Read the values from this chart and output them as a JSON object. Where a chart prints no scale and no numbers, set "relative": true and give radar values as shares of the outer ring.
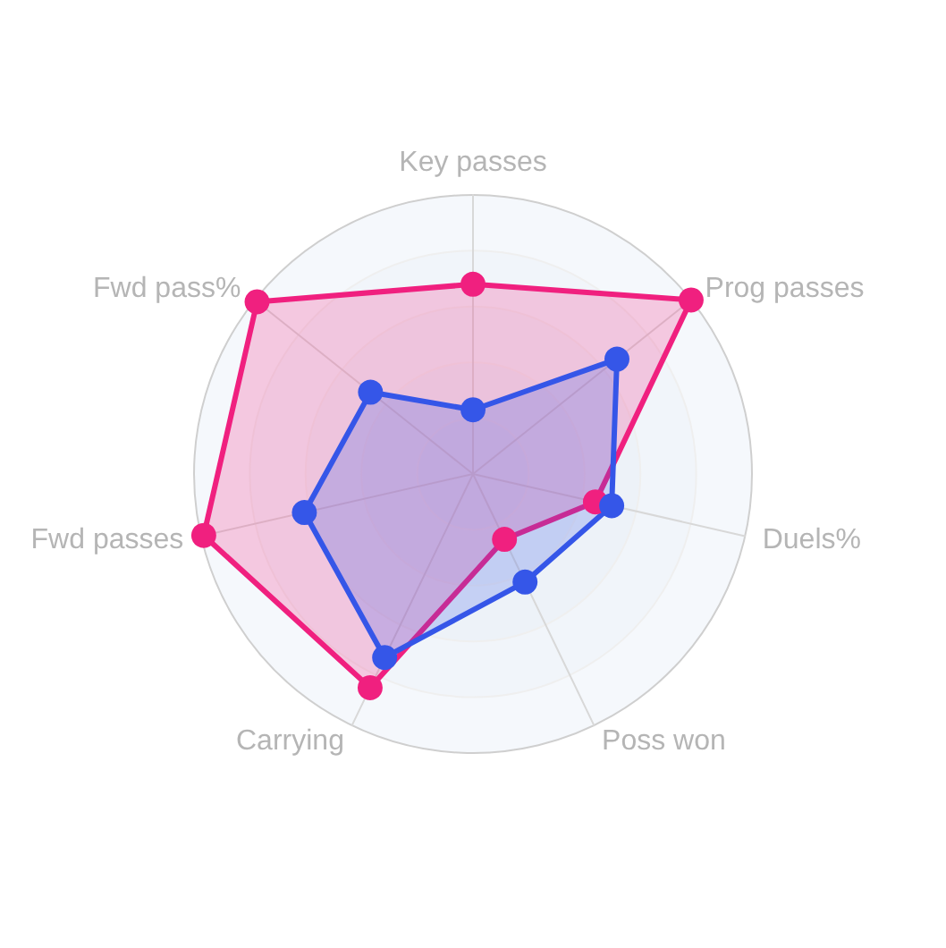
{
  "chart_data": {
    "type": "radar",
    "relative": true,
    "grid": true,
    "marker": "circle",
    "categories": [
      "Key passes",
      "Prog passes",
      "Duels%",
      "Poss won",
      "Carrying",
      "Fwd passes",
      "Fwd pass%"
    ],
    "series": [
      {
        "color": "#f0207f",
        "values": [
          0.68,
          1.0,
          0.45,
          0.26,
          0.85,
          0.99,
          0.99
        ]
      },
      {
        "color": "#3556e8",
        "values": [
          0.23,
          0.66,
          0.51,
          0.43,
          0.73,
          0.62,
          0.47
        ]
      }
    ]
  }
}
